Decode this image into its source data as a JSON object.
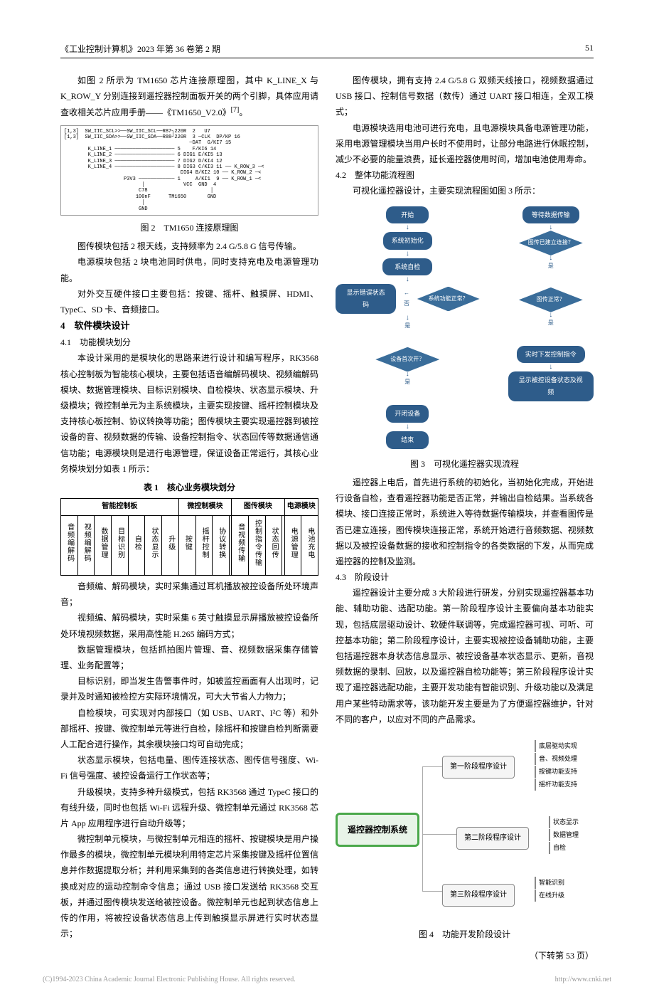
{
  "header": {
    "journal": "《工业控制计算机》2023 年第 36 卷第 2 期",
    "page": "51"
  },
  "left": {
    "p1": "如图 2 所示为 TM1650 芯片连接原理图，其中 K_LINE_X 与 K_ROW_Y 分别连接到遥控器控制面板开关的两个引脚，具体应用请查收相关芯片应用手册——《TM1650_V2.0》",
    "ref1": "[7]",
    "p1tail": "。",
    "fig2_caption": "图 2　TM1650 连接原理图",
    "p2": "图传模块包括 2 根天线，支持频率为 2.4 G/5.8 G 信号传输。",
    "p3": "电源模块包括 2 块电池同时供电，同时支持充电及电源管理功能。",
    "p4": "对外交互硬件接口主要包括：按键、摇杆、触摸屏、HDMI、TypeC、SD 卡、音频接口。",
    "sec4": "4　软件模块设计",
    "sec41": "4.1　功能模块划分",
    "p5": "本设计采用的是模块化的思路来进行设计和编写程序，RK3568 核心控制板为智能核心模块，主要包括语音编解码模块、视频编解码模块、数据管理模块、目标识别模块、自检模块、状态显示模块、升级模块；微控制单元为主系统模块，主要实现按键、摇杆控制模块及支持核心板控制、协议转换等功能；图传模块主要实现遥控器到被控设备的音、视频数据的传输、设备控制指令、状态回传等数据通信通信功能；电源模块则是进行电源管理，保证设备正常运行，其核心业务模块划分如表 1 所示：",
    "tbl1_caption": "表 1　核心业务模块划分",
    "p6": "音频编、解码模块，实时采集通过耳机播放被控设备所处环境声音；",
    "p7": "视频编、解码模块，实时采集 6 英寸触摸显示屏播放被控设备所处环境视频数据，采用高性能 H.265 编码方式；",
    "p8": "数据管理模块，包括抓拍图片管理、音、视频数据采集存储管理、业务配置等；",
    "p9": "目标识别，即当发生告警事件时，如被监控画面有人出现时，记录并及时通知被检控方实际环境情况，可大大节省人力物力；",
    "p10": "自检模块，可实现对内部接口（如 USB、UART、I²C 等）和外部摇杆、按键、微控制单元等进行自检，除摇杆和按键自检判断需要人工配合进行操作，其余模块接口均可自动完成；",
    "p11": "状态显示模块，包括电量、图传连接状态、图传信号强度、Wi-Fi 信号强度、被控设备运行工作状态等；",
    "p12": "升级模块，支持多种升级模式，包括 RK3568 通过 TypeC 接口的有线升级，同时也包括 Wi-Fi 远程升级、微控制单元通过 RK3568 芯片 App 应用程序进行自动升级等；",
    "p13": "微控制单元模块，与微控制单元相连的摇杆、按键模块是用户操作最多的模块，微控制单元模块利用特定芯片采集按键及摇杆位置信息并作数据提取分析；并利用采集到的各类信息进行转换处理，如转换成对应的运动控制命令信息；通过 USB 接口发送给 RK3568 交互板，并通过图传模块发送给被控设备。微控制单元也起到状态信息上传的作用，将被控设备状态信息上传到触摸显示屏进行实时状态显示；"
  },
  "circuit": {
    "lines": [
      "[1,3]  SW_IIC_SCL>>──SW_IIC_SCL──R87┐220R  2   U7",
      "[1,3]  SW_IIC_SDA>>──SW_IIC_SDA──R88┘220R  3 ─CLK  DP/KP 16",
      "                                          ─DAT  G/KI7 15",
      "        K_LINE_1 ──────────────────── 5    F/KI6 14",
      "        K_LINE_2 ──────────────────── 6 DIG1 E/KI5 13",
      "        K_LINE_3 ──────────────────── 7 DIG2 D/KI4 12",
      "        K_LINE_4 ──────────────────── 8 DIG3 C/KI3 11 ── K_ROW_3 ─<<K_ROW_3[9]",
      "                                       DIG4 B/KI2 10 ── K_ROW_2 ─<<K_ROW_2[9]",
      "                    P3V3 ──────────── 1     A/KI1  9 ── K_ROW_1 ─<<K_ROW_1[9]",
      "                          │             VCC  GND  4",
      "                         C78                     │",
      "                        100nF      TM1650       GND",
      "                          │",
      "                         GND"
    ]
  },
  "table1": {
    "groups": [
      {
        "label": "智能控制板",
        "span": 7
      },
      {
        "label": "微控制模块",
        "span": 4
      },
      {
        "label": "图传模块",
        "span": 4
      },
      {
        "label": "电源模块",
        "span": 2
      }
    ],
    "cells": [
      "音频编解码",
      "视频编解码",
      "数据管理",
      "目标识别",
      "自检",
      "状态显示",
      "升级",
      "按键",
      "摇杆控制",
      "协议转换",
      "",
      "音视频传输",
      "控制指令传输",
      "状态回传",
      "",
      "电源管理",
      "电池充电"
    ]
  },
  "right": {
    "p1": "图传模块，拥有支持 2.4 G/5.8 G 双频天线接口，视频数据通过 USB 接口、控制信号数据（数传）通过 UART 接口相连，全双工模式；",
    "p2": "电源模块选用电池可进行充电，且电源模块具备电源管理功能，采用电源管理模块当用户长时不使用时，让部分电路进行休眠控制，减少不必要的能量浪费，延长遥控器使用时间，增加电池使用寿命。",
    "sec42": "4.2　整体功能流程图",
    "p3": "可视化遥控器设计，主要实现流程图如图 3 所示：",
    "fig3_caption": "图 3　可视化遥控器实现流程",
    "p4": "遥控器上电后，首先进行系统的初始化，当初始化完成，开始进行设备自检，查看遥控器功能是否正常，并输出自检结果。当系统各模块、接口连接正常时，系统进入等待数据传输模块，并查看图传是否已建立连接，图传模块连接正常，系统开始进行音频数据、视频数据以及被控设备数据的接收和控制指令的各类数据的下发，从而完成遥控器的控制及监测。",
    "sec43": "4.3　阶段设计",
    "p5": "遥控器设计主要分成 3 大阶段进行研发，分别实现遥控器基本功能、辅助功能、选配功能。第一阶段程序设计主要偏向基本功能实现，包括底层驱动设计、软硬件联调等，完成遥控器可视、可听、可控基本功能；第二阶段程序设计，主要实现被控设备辅助功能，主要包括遥控器本身状态信息显示、被控设备基本状态显示、更新，音视频数据的录制、回放，以及遥控器自检功能等；第三阶段程序设计实现了遥控器选配功能，主要开发功能有智能识别、升级功能以及满足用户某些特动需求等，该功能开发主要是为了方便遥控器维护，针对不同的客户，以应对不同的产品需求。",
    "fig4_caption": "图 4　功能开发阶段设计",
    "continue": "（下转第 53 页）"
  },
  "flow": {
    "bg": "#2e5c8a",
    "diamond_bg": "#3a6d9a",
    "start": "开始",
    "init": "系统初始化",
    "selfcheck": "系统自检",
    "err": "显示错误状态码",
    "q_normal": "系统功能正常？",
    "q_firstopen": "设备首次开？",
    "open": "开闭设备",
    "end": "结束",
    "wait": "等待数据传输",
    "q_conn": "图传已建立连接？",
    "q_ok": "图传正常？",
    "send": "实时下发控制指令",
    "show": "显示被控设备状态及视频",
    "yes": "是",
    "no": "否"
  },
  "phase": {
    "main": "遥控器控制系统",
    "p1": "第一阶段程序设计",
    "p2": "第二阶段程序设计",
    "p3": "第三阶段程序设计",
    "p1_items": [
      "底层驱动实现",
      "音、视频处理",
      "按键功能支持",
      "摇杆功能支持"
    ],
    "p2_items": [
      "状态显示",
      "数据管理",
      "自检"
    ],
    "p3_items": [
      "智能识别",
      "在线升级"
    ]
  },
  "footer": {
    "left": "(C)1994-2023 China Academic Journal Electronic Publishing House. All rights reserved.",
    "right": "http://www.cnki.net"
  }
}
